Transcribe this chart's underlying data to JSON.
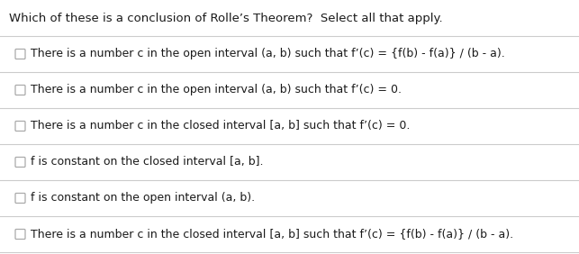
{
  "title": "Which of these is a conclusion of Rolle’s Theorem?  Select all that apply.",
  "options": [
    "There is a number c in the open interval (a, b) such that f’(c) = {f(b) - f(a)} / (b - a).",
    "There is a number c in the open interval (a, b) such that f’(c) = 0.",
    "There is a number c in the closed interval [a, b] such that f’(c) = 0.",
    "f is constant on the closed interval [a, b].",
    "f is constant on the open interval (a, b).",
    "There is a number c in the closed interval [a, b] such that f’(c) = {f(b) - f(a)} / (b - a)."
  ],
  "bg_color": "#ffffff",
  "text_color": "#1a1a1a",
  "line_color": "#cccccc",
  "title_fontsize": 9.5,
  "option_fontsize": 9.0,
  "checkbox_color": "#aaaaaa",
  "figwidth": 6.43,
  "figheight": 2.82,
  "dpi": 100
}
